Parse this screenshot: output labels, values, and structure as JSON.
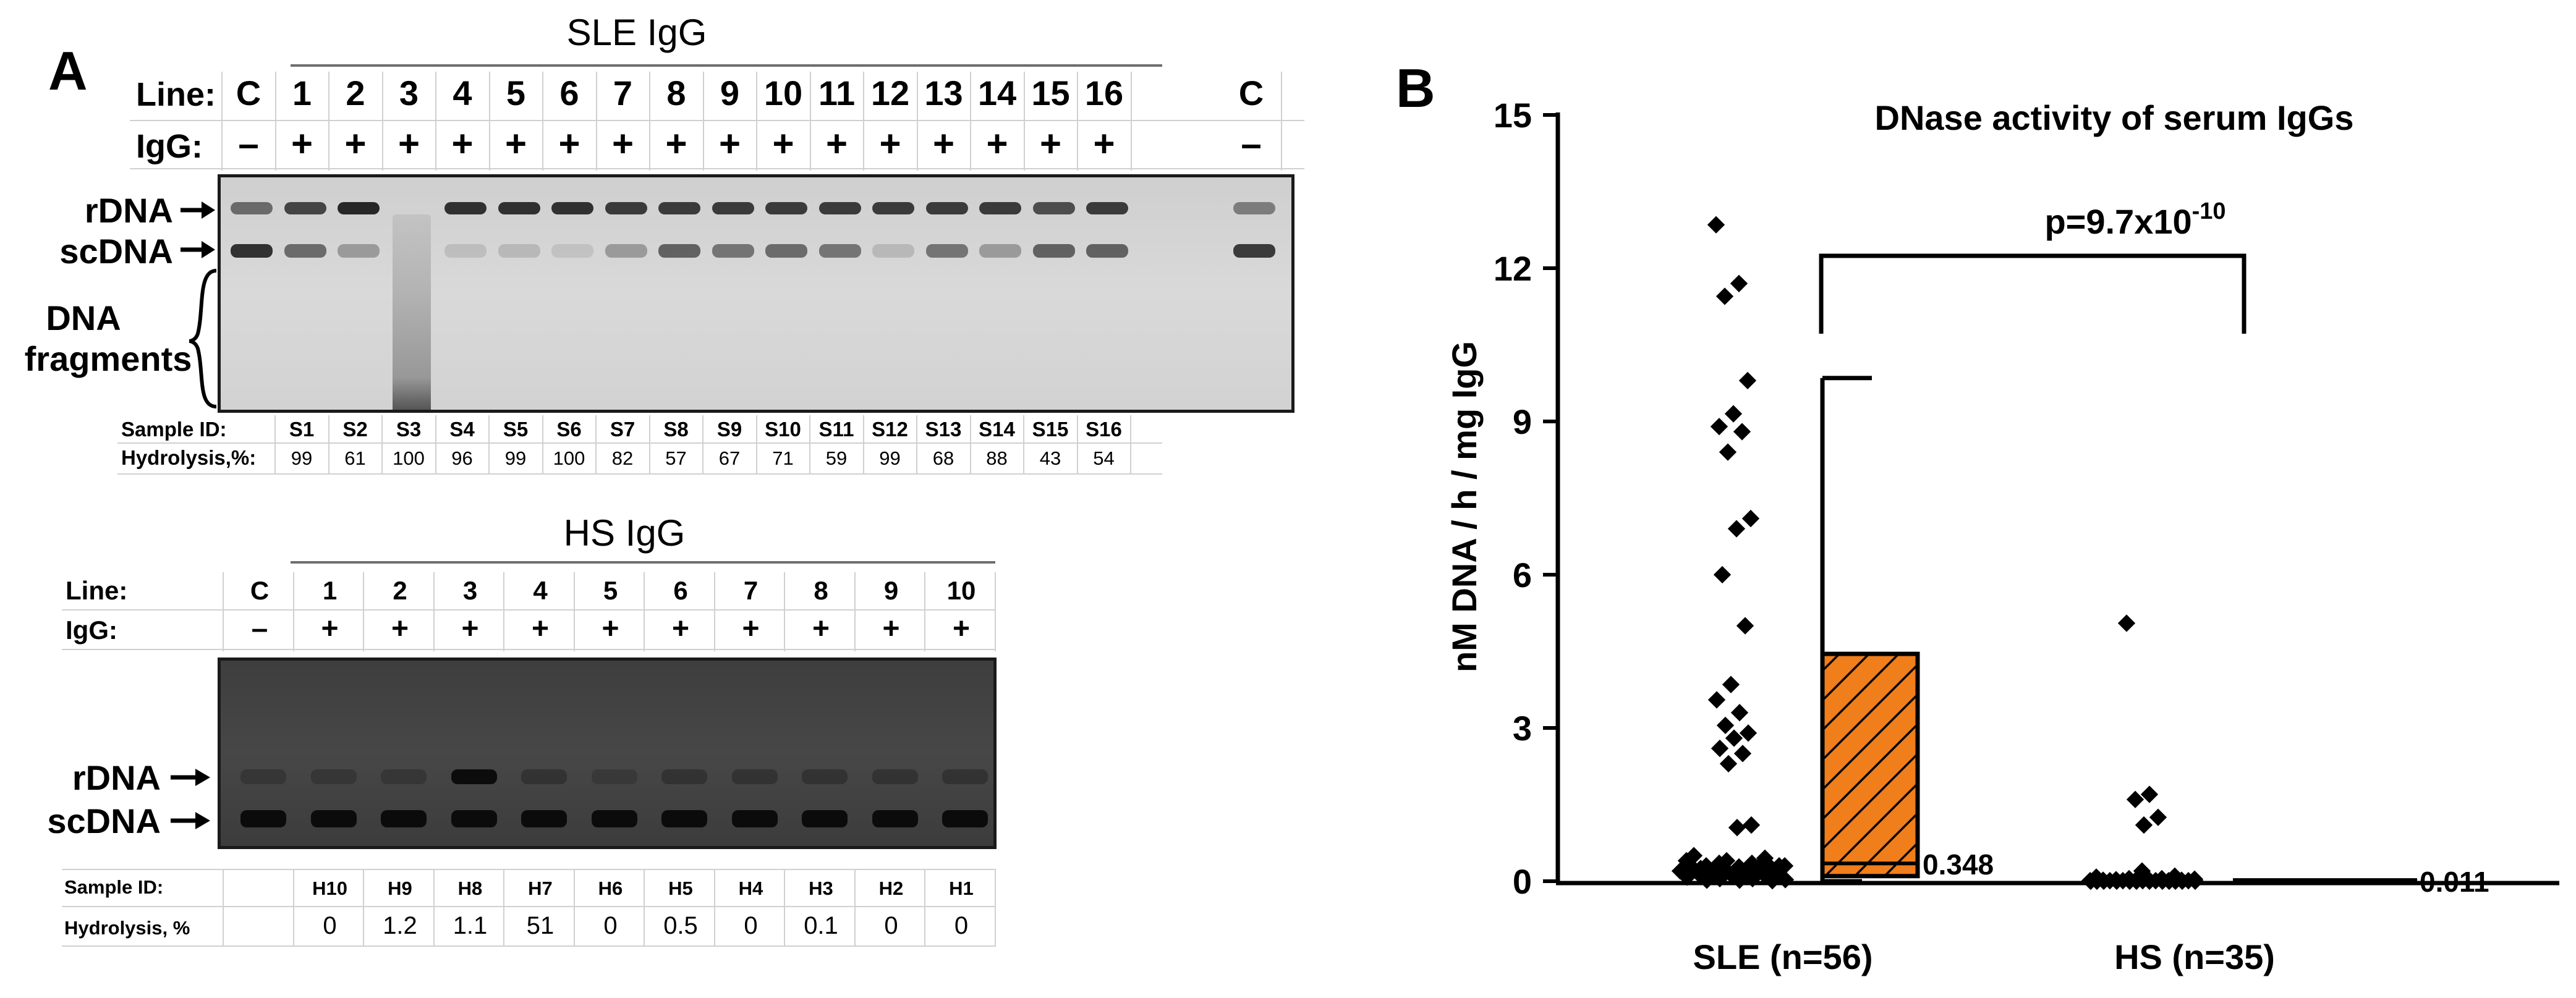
{
  "panel_a": {
    "letter": "A",
    "sle": {
      "title": "SLE IgG",
      "line_label": "Line:",
      "igg_label": "IgG:",
      "lines": [
        "C",
        "1",
        "2",
        "3",
        "4",
        "5",
        "6",
        "7",
        "8",
        "9",
        "10",
        "11",
        "12",
        "13",
        "14",
        "15",
        "16",
        "C"
      ],
      "igg": [
        "–",
        "+",
        "+",
        "+",
        "+",
        "+",
        "+",
        "+",
        "+",
        "+",
        "+",
        "+",
        "+",
        "+",
        "+",
        "+",
        "+",
        "–"
      ],
      "band_labels": [
        "rDNA",
        "scDNA"
      ],
      "fragments_label": [
        "DNA",
        "fragments"
      ],
      "sample_id_label": "Sample ID:",
      "hydrolysis_label": "Hydrolysis,%:",
      "sample_ids": [
        "S1",
        "S2",
        "S3",
        "S4",
        "S5",
        "S6",
        "S7",
        "S8",
        "S9",
        "S10",
        "S11",
        "S12",
        "S13",
        "S14",
        "S15",
        "S16"
      ],
      "hydrolysis": [
        "99",
        "61",
        "100",
        "96",
        "99",
        "100",
        "82",
        "57",
        "67",
        "71",
        "59",
        "99",
        "68",
        "88",
        "43",
        "54"
      ]
    },
    "hs": {
      "title": "HS IgG",
      "line_label": "Line:",
      "igg_label": "IgG:",
      "lines": [
        "C",
        "1",
        "2",
        "3",
        "4",
        "5",
        "6",
        "7",
        "8",
        "9",
        "10"
      ],
      "igg": [
        "–",
        "+",
        "+",
        "+",
        "+",
        "+",
        "+",
        "+",
        "+",
        "+",
        "+"
      ],
      "band_labels": [
        "rDNA",
        "scDNA"
      ],
      "sample_id_label": "Sample ID:",
      "hydrolysis_label": "Hydrolysis, %",
      "sample_ids": [
        "H10",
        "H9",
        "H8",
        "H7",
        "H6",
        "H5",
        "H4",
        "H3",
        "H2",
        "H1"
      ],
      "hydrolysis": [
        "0",
        "1.2",
        "1.1",
        "51",
        "0",
        "0.5",
        "0",
        "0.1",
        "0",
        "0"
      ]
    }
  },
  "panel_b": {
    "letter": "B",
    "p_value_base": "p=9.7x10",
    "p_value_exp": "-10",
    "colors": {
      "box_fill": "#f07e1b",
      "points": "#000000"
    }
  },
  "chart_data": {
    "type": "scatter",
    "title": "DNase activity of serum IgGs",
    "ylabel": "nM DNA / h / mg IgG",
    "xlabel": "",
    "ylim": [
      0,
      15
    ],
    "yticks": [
      "0",
      "3",
      "6",
      "9",
      "12",
      "15"
    ],
    "categories": [
      "SLE (n=56)",
      "HS (n=35)"
    ],
    "series": [
      {
        "values": [
          12.85,
          11.7,
          11.45,
          9.8,
          9.15,
          8.9,
          8.8,
          8.4,
          7.1,
          6.9,
          6.0,
          5.0,
          3.85,
          3.55,
          3.3,
          3.05,
          2.9,
          2.8,
          2.6,
          2.5,
          2.3,
          1.1,
          1.05,
          0.45,
          0.4,
          0.35,
          0.35,
          0.3,
          0.3,
          0.28,
          0.25,
          0.25,
          0.22,
          0.2,
          0.2,
          0.18,
          0.15,
          0.15,
          0.12,
          0.1,
          0.1,
          0.08,
          0.05,
          0.05,
          0.03,
          0.02,
          0.02,
          0.01,
          0.5,
          0.4,
          0.3,
          0.2,
          0.15,
          0.1,
          0.3,
          0.25
        ]
      },
      {
        "values": [
          5.05,
          1.7,
          1.6,
          1.25,
          1.1,
          0.2,
          0.1,
          0.08,
          0.05,
          0.05,
          0.04,
          0.03,
          0.03,
          0.02,
          0.02,
          0.02,
          0.01,
          0.01,
          0.01,
          0.01,
          0.01,
          0.01,
          0.01,
          0.0,
          0.0,
          0.0,
          0.0,
          0.0,
          0.0,
          0.0,
          0.0,
          0.0,
          0.0,
          0.0,
          0.0
        ]
      }
    ],
    "boxes": [
      {
        "category": "SLE (n=56)",
        "q1": 0.1,
        "median": 0.348,
        "q3": 4.45,
        "whisker_high": 9.85,
        "median_label": "0.348"
      },
      {
        "category": "HS (n=35)",
        "median": 0.011,
        "median_label": "0.011"
      }
    ],
    "annotation": "p=9.7x10-10"
  }
}
